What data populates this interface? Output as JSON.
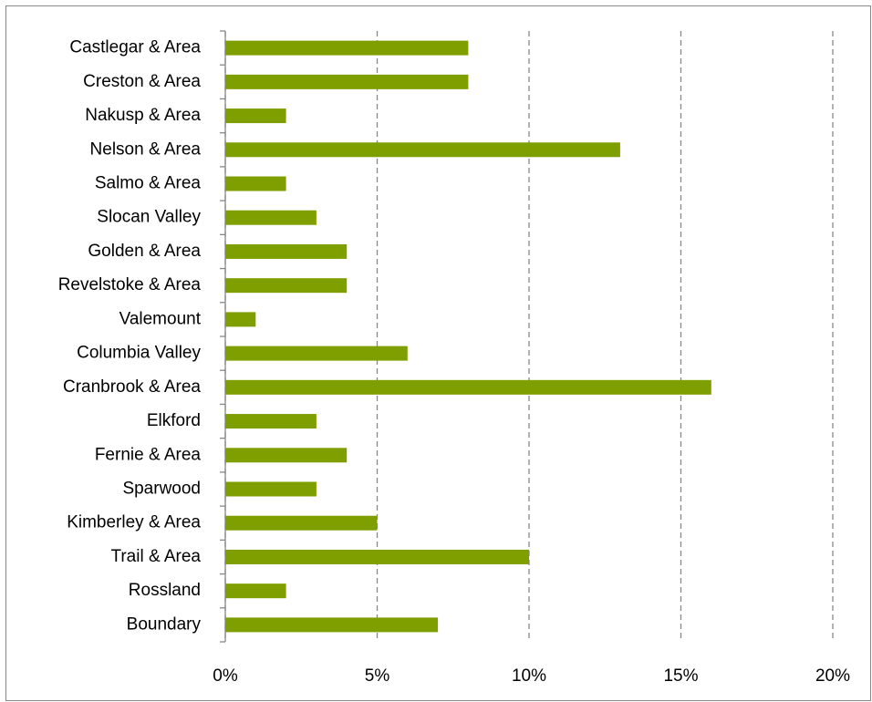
{
  "chart_data": {
    "type": "barh",
    "categories": [
      "Castlegar & Area",
      "Creston & Area",
      "Nakusp & Area",
      "Nelson & Area",
      "Salmo & Area",
      "Slocan Valley",
      "Golden & Area",
      "Revelstoke & Area",
      "Valemount",
      "Columbia Valley",
      "Cranbrook & Area",
      "Elkford",
      "Fernie & Area",
      "Sparwood",
      "Kimberley & Area",
      "Trail & Area",
      "Rossland",
      "Boundary"
    ],
    "values": [
      8,
      8,
      2,
      13,
      2,
      3,
      4,
      4,
      1,
      6,
      16,
      3,
      4,
      3,
      5,
      10,
      2,
      7
    ],
    "color": "#7f9f00",
    "xlim": [
      0,
      20
    ],
    "xticks": [
      {
        "value": 0,
        "label": "0%"
      },
      {
        "value": 5,
        "label": "5%"
      },
      {
        "value": 10,
        "label": "10%"
      },
      {
        "value": 15,
        "label": "15%"
      },
      {
        "value": 20,
        "label": "20%"
      }
    ],
    "grid": true
  }
}
